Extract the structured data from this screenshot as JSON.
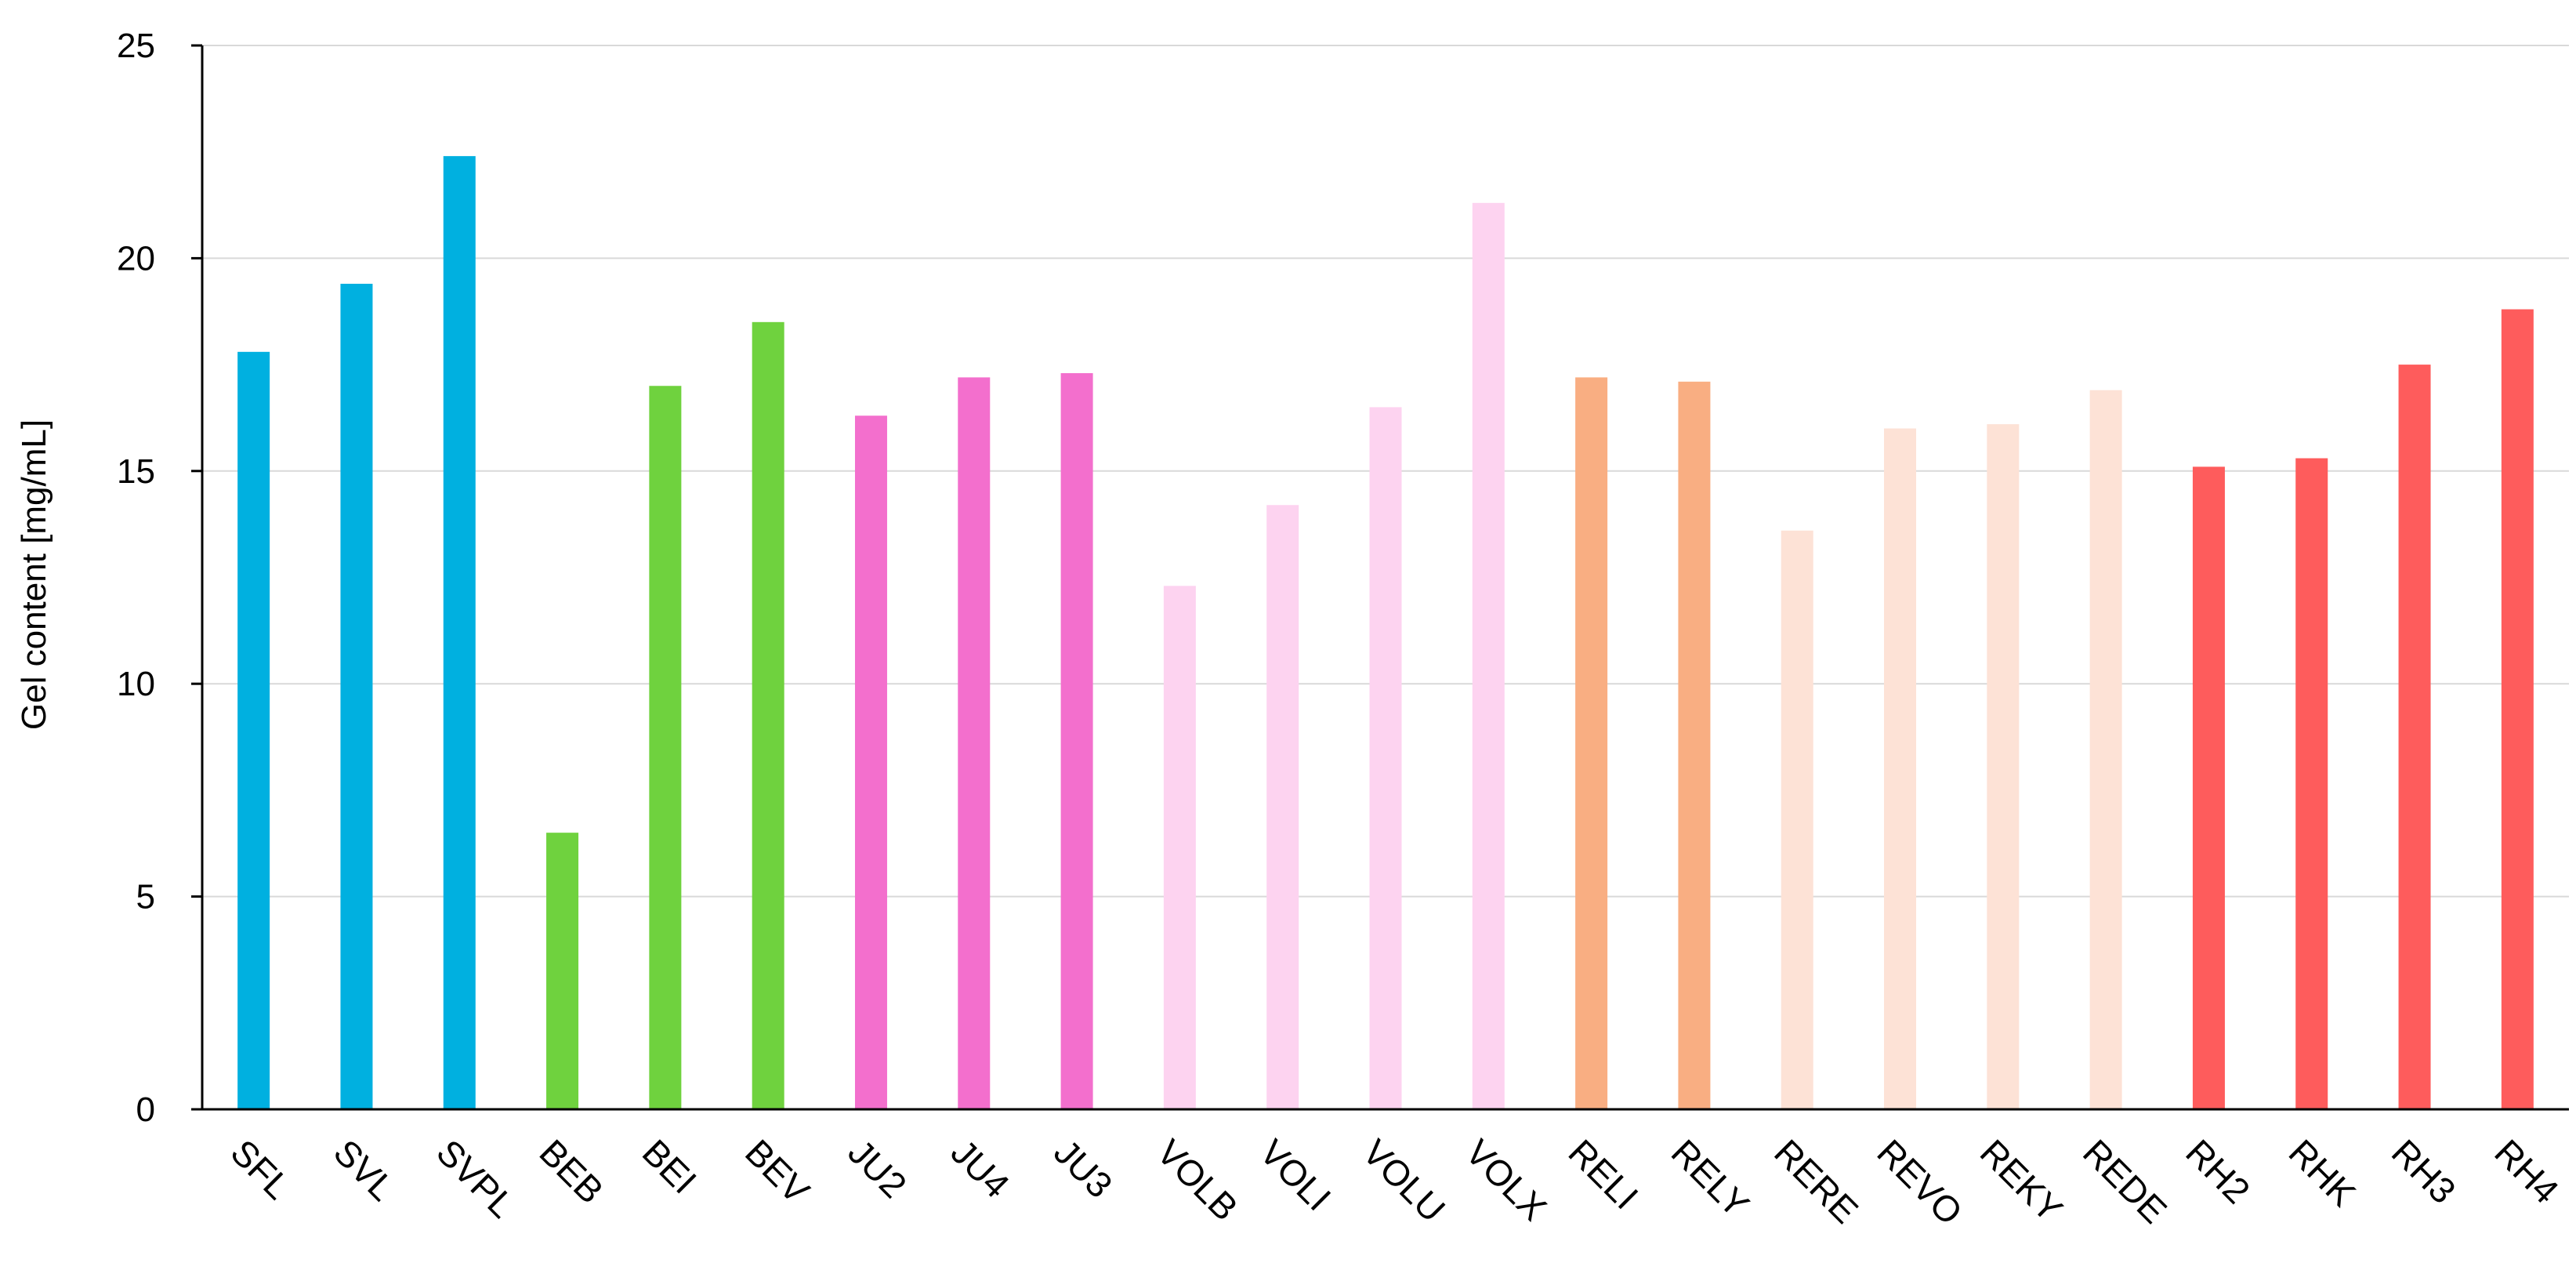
{
  "chart_data": {
    "type": "bar",
    "title": "",
    "xlabel": "",
    "ylabel": "Gel content [mg/mL]",
    "ylim": [
      0,
      25
    ],
    "yticks": [
      0,
      5,
      10,
      15,
      20,
      25
    ],
    "grid": true,
    "legend": "none",
    "categories": [
      "SFL",
      "SVL",
      "SVPL",
      "BEB",
      "BEI",
      "BEV",
      "JU2",
      "JU4",
      "JU3",
      "VOLB",
      "VOLI",
      "VOLU",
      "VOLX",
      "RELI",
      "RELY",
      "RERE",
      "REVO",
      "REKY",
      "REDE",
      "RH2",
      "RHK",
      "RH3",
      "RH4"
    ],
    "values": [
      17.8,
      19.4,
      22.4,
      6.5,
      17.0,
      18.5,
      16.3,
      17.2,
      17.3,
      12.3,
      14.2,
      16.5,
      21.3,
      17.2,
      17.1,
      13.6,
      16.0,
      16.1,
      16.9,
      15.1,
      15.3,
      17.5,
      18.8
    ],
    "colors": [
      "#00b0e0",
      "#00b0e0",
      "#00b0e0",
      "#6fd23e",
      "#6fd23e",
      "#6fd23e",
      "#f36fcd",
      "#f36fcd",
      "#f36fcd",
      "#fdd3f0",
      "#fdd3f0",
      "#fdd3f0",
      "#fdd3f0",
      "#f9ae82",
      "#f9ae82",
      "#fde2d6",
      "#fde2d6",
      "#fde2d6",
      "#fde2d6",
      "#fe5c5c",
      "#fe5c5c",
      "#fe5c5c",
      "#fe5c5c"
    ]
  }
}
